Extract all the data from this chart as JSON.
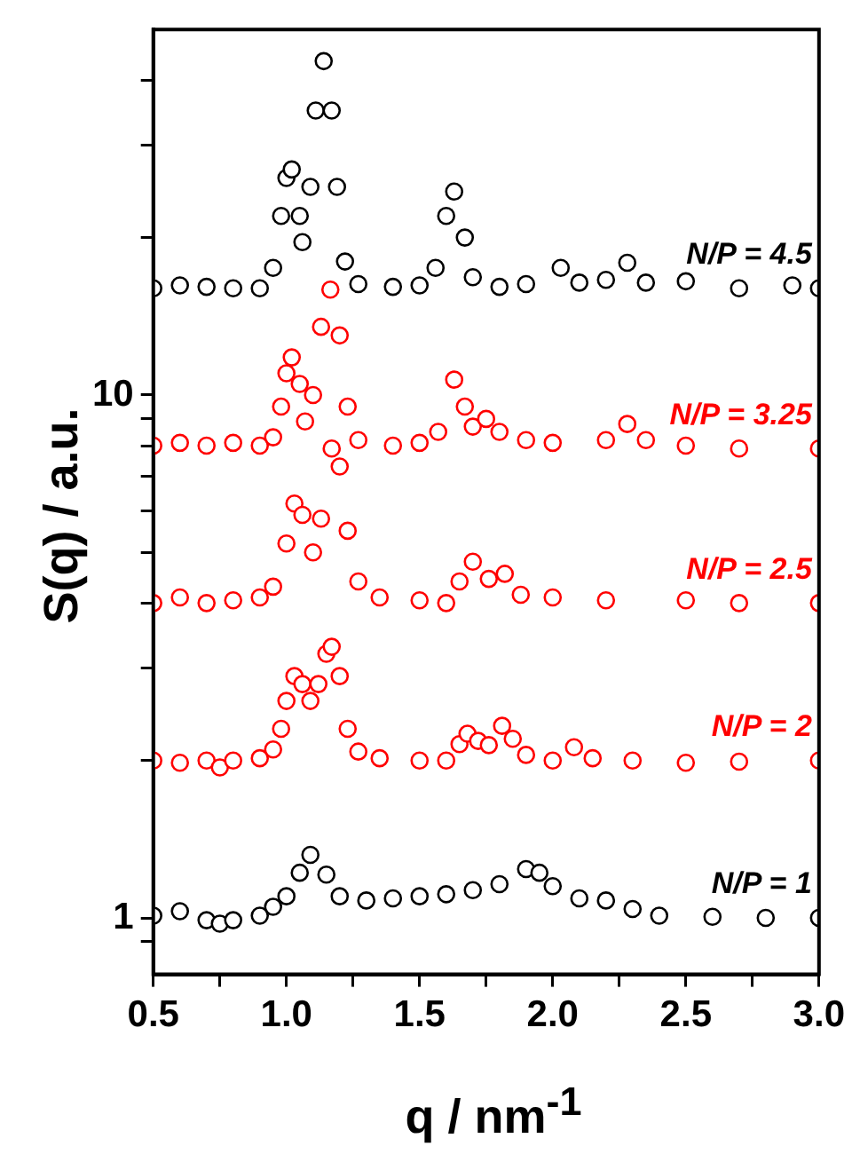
{
  "chart_data": {
    "type": "scatter",
    "xlabel": "q / nm$^{-1}$",
    "ylabel": "S(q) / a.u.",
    "log": "y",
    "marker": "circle",
    "legend": false,
    "grid": false,
    "xlim": [
      0.5,
      3.0
    ],
    "xticks": [
      {
        "value": 0.5,
        "label": "0.5"
      },
      {
        "value": 0.75,
        "label": null
      },
      {
        "value": 1,
        "label": "1.0"
      },
      {
        "value": 1.25,
        "label": null
      },
      {
        "value": 1.5,
        "label": "1.5"
      },
      {
        "value": 1.75,
        "label": null
      },
      {
        "value": 2,
        "label": "2.0"
      },
      {
        "value": 2.25,
        "label": null
      },
      {
        "value": 2.5,
        "label": "2.5"
      },
      {
        "value": 2.75,
        "label": null
      },
      {
        "value": 3,
        "label": "3.0"
      }
    ],
    "ylim": [
      0.78,
      50
    ],
    "yticks": [
      {
        "value": 0.9,
        "label": null
      },
      1,
      {
        "value": 2,
        "label": null
      },
      {
        "value": 3,
        "label": null
      },
      {
        "value": 4,
        "label": null
      },
      {
        "value": 5,
        "label": null
      },
      {
        "value": 6,
        "label": null
      },
      {
        "value": 7,
        "label": null
      },
      {
        "value": 8,
        "label": null
      },
      {
        "value": 9,
        "label": null
      },
      10,
      {
        "value": 20,
        "label": null
      },
      {
        "value": 30,
        "label": null
      },
      {
        "value": 40,
        "label": null
      }
    ],
    "series": [
      {
        "name": "N/P = 1",
        "color": "#000000",
        "x": [
          0.5,
          0.6,
          0.7,
          0.75,
          0.8,
          0.9,
          0.95,
          1.0,
          1.05,
          1.09,
          1.15,
          1.2,
          1.3,
          1.4,
          1.5,
          1.6,
          1.7,
          1.8,
          1.9,
          1.95,
          2.0,
          2.1,
          2.2,
          2.3,
          2.4,
          2.6,
          2.8,
          3.0
        ],
        "values": [
          1.01,
          1.03,
          0.99,
          0.975,
          0.99,
          1.01,
          1.05,
          1.1,
          1.22,
          1.32,
          1.21,
          1.1,
          1.08,
          1.09,
          1.1,
          1.11,
          1.13,
          1.16,
          1.24,
          1.22,
          1.15,
          1.09,
          1.08,
          1.04,
          1.01,
          1.005,
          1.0,
          1.0
        ]
      },
      {
        "name": "N/P = 2",
        "color": "#ff0000",
        "x": [
          0.5,
          0.6,
          0.7,
          0.75,
          0.8,
          0.9,
          0.95,
          0.98,
          1.0,
          1.03,
          1.06,
          1.09,
          1.12,
          1.15,
          1.17,
          1.2,
          1.23,
          1.27,
          1.35,
          1.5,
          1.6,
          1.65,
          1.68,
          1.72,
          1.76,
          1.81,
          1.85,
          1.9,
          2.0,
          2.08,
          2.15,
          2.3,
          2.5,
          2.7,
          3.0
        ],
        "values": [
          2.0,
          1.98,
          2.0,
          1.94,
          2.0,
          2.02,
          2.1,
          2.3,
          2.6,
          2.9,
          2.8,
          2.6,
          2.8,
          3.2,
          3.3,
          2.9,
          2.3,
          2.08,
          2.02,
          2.0,
          2.0,
          2.15,
          2.25,
          2.18,
          2.14,
          2.33,
          2.2,
          2.05,
          2.0,
          2.12,
          2.02,
          2.0,
          1.98,
          1.99,
          2.0
        ]
      },
      {
        "name": "N/P = 2.5",
        "color": "#ff0000",
        "x": [
          0.5,
          0.6,
          0.7,
          0.8,
          0.9,
          0.95,
          1.0,
          1.03,
          1.06,
          1.1,
          1.13,
          1.17,
          1.2,
          1.23,
          1.27,
          1.35,
          1.5,
          1.6,
          1.65,
          1.7,
          1.76,
          1.82,
          1.88,
          2.0,
          2.2,
          2.5,
          2.7,
          3.0
        ],
        "values": [
          4.0,
          4.1,
          4.0,
          4.05,
          4.1,
          4.3,
          5.2,
          6.2,
          5.9,
          5.0,
          5.8,
          7.9,
          7.3,
          5.5,
          4.4,
          4.1,
          4.05,
          4.0,
          4.4,
          4.8,
          4.45,
          4.55,
          4.15,
          4.1,
          4.05,
          4.05,
          4.0,
          4.0
        ]
      },
      {
        "name": "N/P = 3.25",
        "color": "#ff0000",
        "x": [
          0.5,
          0.6,
          0.7,
          0.8,
          0.9,
          0.95,
          0.98,
          1.0,
          1.02,
          1.05,
          1.07,
          1.1,
          1.13,
          1.165,
          1.2,
          1.23,
          1.27,
          1.4,
          1.5,
          1.57,
          1.63,
          1.67,
          1.7,
          1.75,
          1.8,
          1.9,
          2.0,
          2.2,
          2.28,
          2.35,
          2.5,
          2.7,
          3.0
        ],
        "values": [
          8.0,
          8.1,
          8.0,
          8.1,
          8.0,
          8.3,
          9.5,
          11.0,
          11.8,
          10.5,
          8.9,
          10.0,
          13.5,
          15.9,
          13.0,
          9.5,
          8.2,
          8.0,
          8.1,
          8.5,
          10.7,
          9.5,
          8.7,
          9.0,
          8.5,
          8.2,
          8.1,
          8.2,
          8.8,
          8.2,
          8.0,
          7.9,
          7.9
        ]
      },
      {
        "name": "N/P = 4.5",
        "color": "#000000",
        "x": [
          0.5,
          0.6,
          0.7,
          0.8,
          0.9,
          0.95,
          0.98,
          1.0,
          1.02,
          1.05,
          1.06,
          1.09,
          1.11,
          1.14,
          1.17,
          1.19,
          1.22,
          1.27,
          1.4,
          1.5,
          1.56,
          1.6,
          1.63,
          1.67,
          1.7,
          1.8,
          1.9,
          2.03,
          2.1,
          2.2,
          2.28,
          2.35,
          2.5,
          2.7,
          2.9,
          3.0
        ],
        "values": [
          16,
          16.2,
          16.1,
          16.0,
          16.0,
          17.5,
          22,
          26,
          27,
          22,
          19.6,
          25,
          35,
          43.5,
          35,
          25,
          18,
          16.3,
          16.1,
          16.2,
          17.5,
          22,
          24.5,
          20,
          16.8,
          16.1,
          16.3,
          17.5,
          16.4,
          16.6,
          17.9,
          16.4,
          16.5,
          16.0,
          16.2,
          16.0
        ]
      }
    ]
  }
}
